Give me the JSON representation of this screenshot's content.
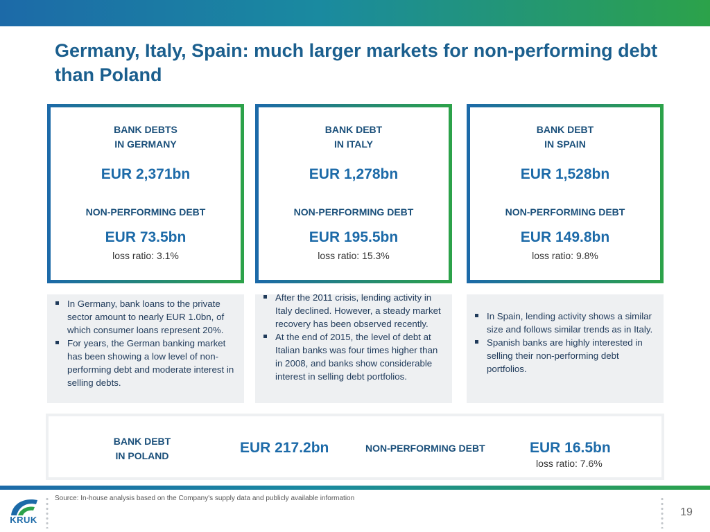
{
  "title": "Germany, Italy, Spain: much larger markets for non-performing debt than Poland",
  "cards": [
    {
      "label_line1": "BANK DEBTS",
      "label_line2": "IN GERMANY",
      "total": "EUR 2,371bn",
      "npl_label": "NON-PERFORMING DEBT",
      "npl": "EUR 73.5bn",
      "ratio": "loss ratio: 3.1%"
    },
    {
      "label_line1": "BANK DEBT",
      "label_line2": "IN ITALY",
      "total": "EUR 1,278bn",
      "npl_label": "NON-PERFORMING DEBT",
      "npl": "EUR 195.5bn",
      "ratio": "loss ratio: 15.3%"
    },
    {
      "label_line1": "BANK DEBT",
      "label_line2": "IN SPAIN",
      "total": "EUR 1,528bn",
      "npl_label": "NON-PERFORMING DEBT",
      "npl": "EUR 149.8bn",
      "ratio": "loss ratio: 9.8%"
    }
  ],
  "notes": [
    [
      "In Germany, bank loans to the private sector amount to nearly EUR 1.0bn, of which consumer loans represent 20%.",
      "For years, the German banking market has been showing a low level of non-performing debt and moderate interest in selling debts."
    ],
    [
      "After the 2011 crisis, lending activity in Italy declined. However, a steady market recovery has been observed recently.",
      "At the end of 2015, the level of debt at Italian banks was four times higher than in 2008, and banks show considerable interest in selling debt portfolios."
    ],
    [
      "In Spain, lending activity shows a similar size and follows similar trends as in Italy.",
      "Spanish banks are highly interested in selling their non-performing debt portfolios."
    ]
  ],
  "poland": {
    "label_line1": "BANK DEBT",
    "label_line2": "IN POLAND",
    "total": "EUR 217.2bn",
    "npl_label": "NON-PERFORMING DEBT",
    "npl": "EUR 16.5bn",
    "ratio": "loss ratio: 7.6%"
  },
  "footer": {
    "source": "Source: In-house analysis based on the Company's supply data and publicly available information",
    "page_number": "19",
    "logo_text": "KRUK"
  },
  "colors": {
    "primary_blue": "#1c6aa8",
    "accent_green": "#2ca24a",
    "title_blue": "#1b5f8e"
  }
}
